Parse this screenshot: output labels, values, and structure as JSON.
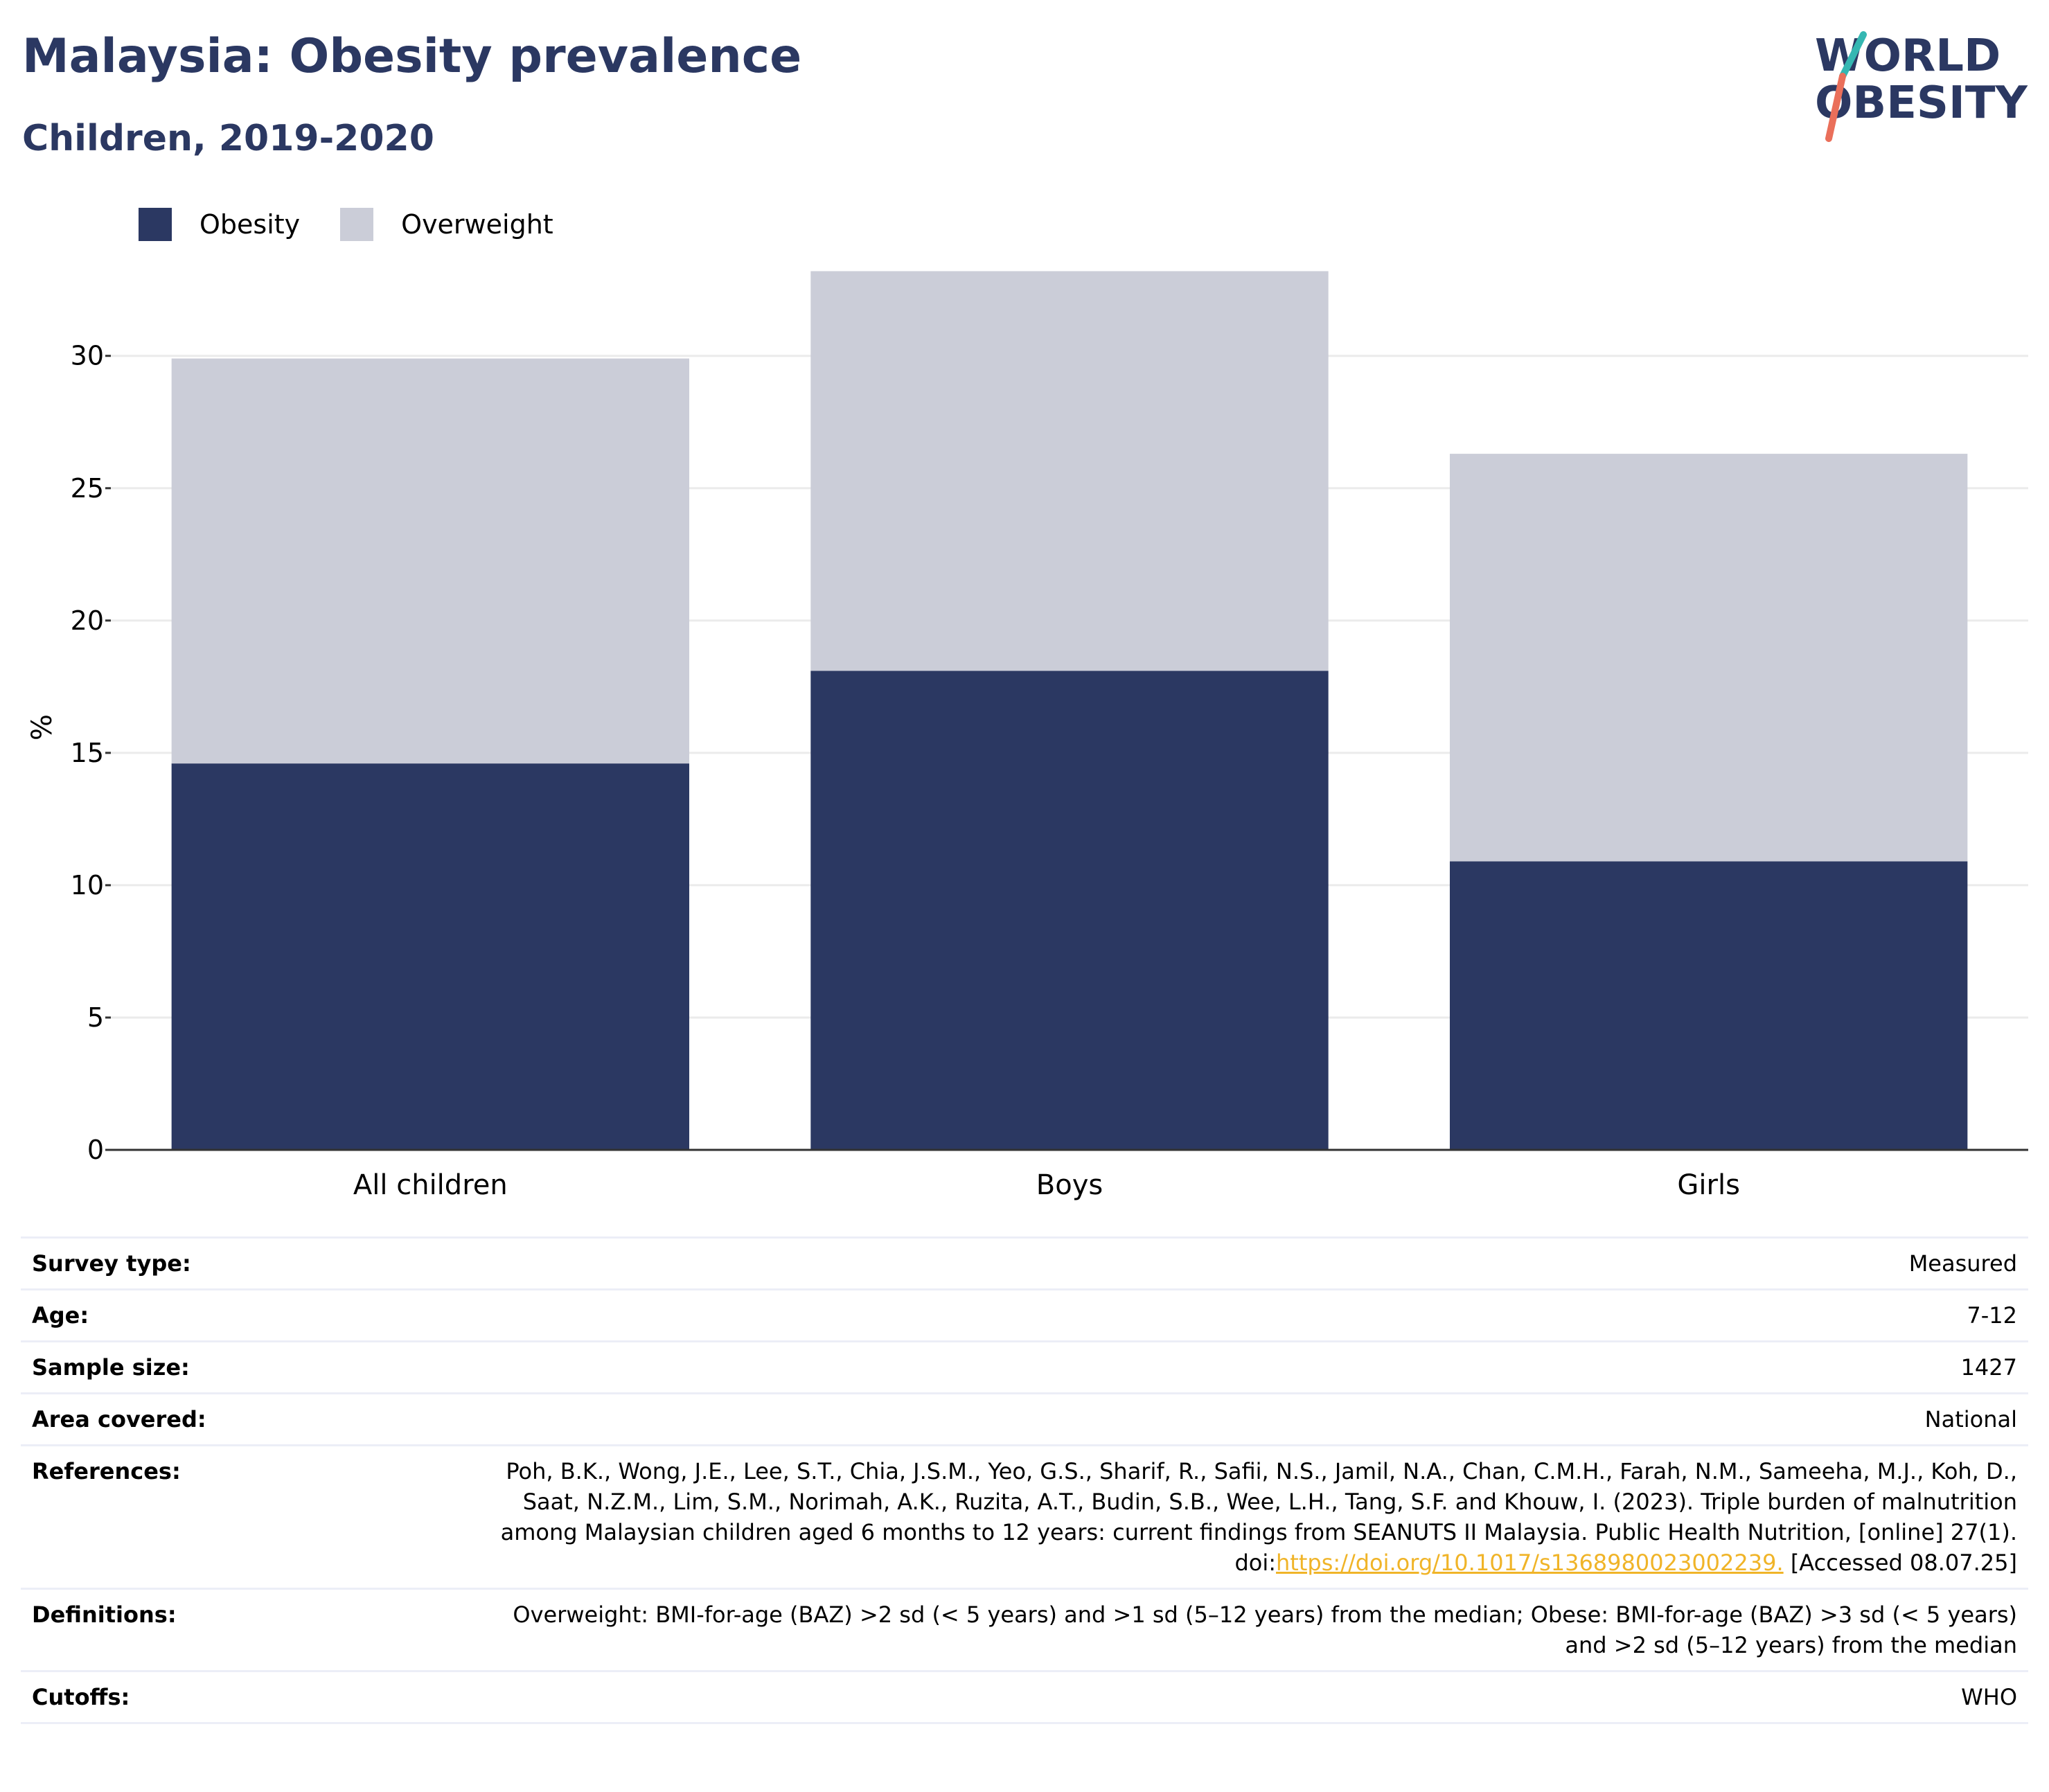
{
  "header": {
    "title": "Malaysia: Obesity prevalence",
    "subtitle": "Children, 2019-2020"
  },
  "logo": {
    "line1": "WORLD",
    "line2": "OBESITY"
  },
  "colors": {
    "obesity": "#2b3862",
    "overweight": "#cbcdd8",
    "title": "#2b3862",
    "link": "#f0b428",
    "logo_teal": "#35b7b2",
    "logo_coral": "#ea6f5a"
  },
  "chart_data": {
    "type": "bar",
    "stacked": true,
    "categories": [
      "All children",
      "Boys",
      "Girls"
    ],
    "series": [
      {
        "name": "Obesity",
        "values": [
          14.6,
          18.1,
          10.9
        ]
      },
      {
        "name": "Overweight",
        "values": [
          15.3,
          15.1,
          15.4
        ]
      }
    ],
    "ylabel": "%",
    "ylim": [
      0,
      33.5
    ],
    "yticks": [
      0,
      5,
      10,
      15,
      20,
      25,
      30
    ],
    "grid": true,
    "legend": "top-left"
  },
  "meta": {
    "survey_type": {
      "label": "Survey type:",
      "value": "Measured"
    },
    "age": {
      "label": "Age:",
      "value": "7-12"
    },
    "sample_size": {
      "label": "Sample size:",
      "value": "1427"
    },
    "area": {
      "label": "Area covered:",
      "value": "National"
    },
    "references": {
      "label": "References:",
      "text": "Poh, B.K., Wong, J.E., Lee, S.T., Chia, J.S.M., Yeo, G.S., Sharif, R., Safii, N.S., Jamil, N.A., Chan, C.M.H., Farah, N.M., Sameeha, M.J., Koh, D., Saat, N.Z.M., Lim, S.M., Norimah, A.K., Ruzita, A.T., Budin, S.B., Wee, L.H., Tang, S.F. and Khouw, I. (2023). Triple burden of malnutrition among Malaysian children aged 6 months to 12 years: current findings from SEANUTS II Malaysia. Public Health Nutrition, [online] 27(1). doi:",
      "doi": "https://doi.org/10.1017/s1368980023002239.",
      "accessed": " [Accessed 08.07.25]"
    },
    "definitions": {
      "label": "Definitions:",
      "value": "Overweight: BMI-for-age (BAZ) >2 sd (< 5 years) and >1 sd (5–12 years) from the median; Obese: BMI-for-age (BAZ) >3 sd (< 5 years) and >2 sd (5–12 years) from the median"
    },
    "cutoffs": {
      "label": "Cutoffs:",
      "value": "WHO"
    }
  }
}
